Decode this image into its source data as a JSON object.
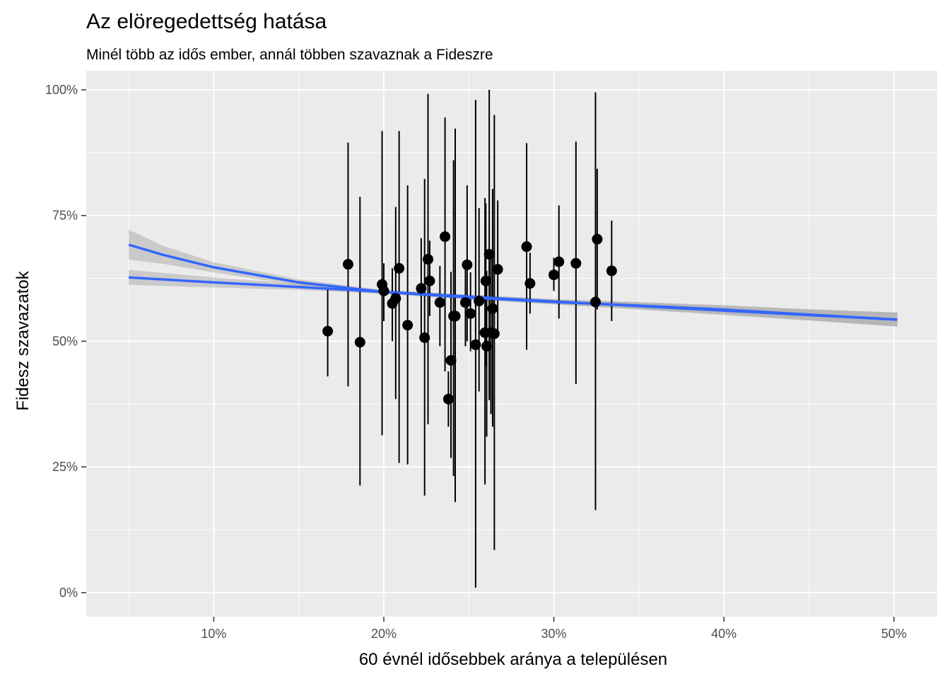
{
  "chart_data": {
    "type": "scatter",
    "title": "Az elöregedettség hatása",
    "subtitle": "Minél több az idős ember, annál többen szavaznak a Fideszre",
    "xlabel": "60 évnél idősebbek aránya a településen",
    "ylabel": "Fidesz szavazatok",
    "xlim": [
      0.025,
      0.5255
    ],
    "ylim": [
      -0.048,
      1.038
    ],
    "x_ticks": [
      0.1,
      0.2,
      0.3,
      0.4,
      0.5
    ],
    "x_tick_labels": [
      "10%",
      "20%",
      "30%",
      "40%",
      "50%"
    ],
    "y_ticks": [
      0,
      0.25,
      0.5,
      0.75,
      1.0
    ],
    "y_tick_labels": [
      "0%",
      "25%",
      "50%",
      "75%",
      "100%"
    ],
    "grid": true,
    "colors": {
      "panel": "#ebebeb",
      "grid": "#ffffff",
      "points": "#000000",
      "smooth_line": "#3366ff",
      "ribbon": "#999999"
    },
    "points": [
      {
        "x": 0.167,
        "y": 0.52,
        "ymin": 0.43,
        "ymax": 0.607
      },
      {
        "x": 0.179,
        "y": 0.653,
        "ymin": 0.41,
        "ymax": 0.895
      },
      {
        "x": 0.186,
        "y": 0.498,
        "ymin": 0.213,
        "ymax": 0.787
      },
      {
        "x": 0.199,
        "y": 0.613,
        "ymin": 0.313,
        "ymax": 0.918
      },
      {
        "x": 0.2,
        "y": 0.6,
        "ymin": 0.54,
        "ymax": 0.655
      },
      {
        "x": 0.205,
        "y": 0.575,
        "ymin": 0.5,
        "ymax": 0.645
      },
      {
        "x": 0.207,
        "y": 0.585,
        "ymin": 0.385,
        "ymax": 0.767
      },
      {
        "x": 0.209,
        "y": 0.645,
        "ymin": 0.258,
        "ymax": 0.918
      },
      {
        "x": 0.214,
        "y": 0.532,
        "ymin": 0.255,
        "ymax": 0.81
      },
      {
        "x": 0.222,
        "y": 0.605,
        "ymin": 0.51,
        "ymax": 0.705
      },
      {
        "x": 0.224,
        "y": 0.507,
        "ymin": 0.193,
        "ymax": 0.823
      },
      {
        "x": 0.226,
        "y": 0.663,
        "ymin": 0.335,
        "ymax": 0.992
      },
      {
        "x": 0.227,
        "y": 0.62,
        "ymin": 0.55,
        "ymax": 0.7
      },
      {
        "x": 0.233,
        "y": 0.577,
        "ymin": 0.49,
        "ymax": 0.65
      },
      {
        "x": 0.236,
        "y": 0.708,
        "ymin": 0.44,
        "ymax": 0.945
      },
      {
        "x": 0.238,
        "y": 0.385,
        "ymin": 0.33,
        "ymax": 0.44
      },
      {
        "x": 0.2395,
        "y": 0.462,
        "ymin": 0.268,
        "ymax": 0.638
      },
      {
        "x": 0.241,
        "y": 0.55,
        "ymin": 0.232,
        "ymax": 0.86
      },
      {
        "x": 0.242,
        "y": 0.55,
        "ymin": 0.18,
        "ymax": 0.923
      },
      {
        "x": 0.248,
        "y": 0.577,
        "ymin": 0.49,
        "ymax": 0.66
      },
      {
        "x": 0.249,
        "y": 0.652,
        "ymin": 0.5,
        "ymax": 0.81
      },
      {
        "x": 0.251,
        "y": 0.555,
        "ymin": 0.48,
        "ymax": 0.637
      },
      {
        "x": 0.254,
        "y": 0.493,
        "ymin": 0.01,
        "ymax": 0.98
      },
      {
        "x": 0.256,
        "y": 0.58,
        "ymin": 0.4,
        "ymax": 0.765
      },
      {
        "x": 0.2595,
        "y": 0.517,
        "ymin": 0.215,
        "ymax": 0.785
      },
      {
        "x": 0.26,
        "y": 0.62,
        "ymin": 0.45,
        "ymax": 0.774
      },
      {
        "x": 0.2605,
        "y": 0.49,
        "ymin": 0.31,
        "ymax": 0.64
      },
      {
        "x": 0.262,
        "y": 0.673,
        "ymin": 0.383,
        "ymax": 1.0
      },
      {
        "x": 0.263,
        "y": 0.517,
        "ymin": 0.355,
        "ymax": 0.683
      },
      {
        "x": 0.264,
        "y": 0.565,
        "ymin": 0.33,
        "ymax": 0.803
      },
      {
        "x": 0.265,
        "y": 0.515,
        "ymin": 0.085,
        "ymax": 0.95
      },
      {
        "x": 0.267,
        "y": 0.643,
        "ymin": 0.51,
        "ymax": 0.78
      },
      {
        "x": 0.284,
        "y": 0.688,
        "ymin": 0.483,
        "ymax": 0.894
      },
      {
        "x": 0.286,
        "y": 0.615,
        "ymin": 0.555,
        "ymax": 0.676
      },
      {
        "x": 0.3,
        "y": 0.632,
        "ymin": 0.6,
        "ymax": 0.666
      },
      {
        "x": 0.303,
        "y": 0.658,
        "ymin": 0.545,
        "ymax": 0.77
      },
      {
        "x": 0.313,
        "y": 0.655,
        "ymin": 0.415,
        "ymax": 0.897
      },
      {
        "x": 0.3245,
        "y": 0.578,
        "ymin": 0.164,
        "ymax": 0.995
      },
      {
        "x": 0.3255,
        "y": 0.703,
        "ymin": 0.563,
        "ymax": 0.843
      },
      {
        "x": 0.334,
        "y": 0.64,
        "ymin": 0.54,
        "ymax": 0.74
      }
    ],
    "smooth_curves": [
      {
        "x": [
          0.05,
          0.07,
          0.1,
          0.15,
          0.2,
          0.25,
          0.3,
          0.35,
          0.4,
          0.45,
          0.502
        ],
        "y": [
          0.692,
          0.672,
          0.647,
          0.617,
          0.598,
          0.587,
          0.578,
          0.571,
          0.563,
          0.553,
          0.543
        ],
        "upper": [
          0.722,
          0.69,
          0.657,
          0.623,
          0.602,
          0.591,
          0.583,
          0.578,
          0.572,
          0.564,
          0.557
        ],
        "lower": [
          0.662,
          0.654,
          0.637,
          0.611,
          0.594,
          0.583,
          0.573,
          0.564,
          0.554,
          0.542,
          0.529
        ]
      },
      {
        "x": [
          0.05,
          0.1,
          0.15,
          0.2,
          0.25,
          0.3,
          0.35,
          0.4,
          0.45,
          0.502
        ],
        "y": [
          0.627,
          0.617,
          0.608,
          0.598,
          0.589,
          0.579,
          0.57,
          0.561,
          0.552,
          0.543
        ],
        "upper": [
          0.642,
          0.627,
          0.614,
          0.602,
          0.593,
          0.584,
          0.577,
          0.57,
          0.563,
          0.557
        ],
        "lower": [
          0.612,
          0.607,
          0.602,
          0.594,
          0.585,
          0.574,
          0.563,
          0.552,
          0.541,
          0.529
        ]
      }
    ]
  }
}
